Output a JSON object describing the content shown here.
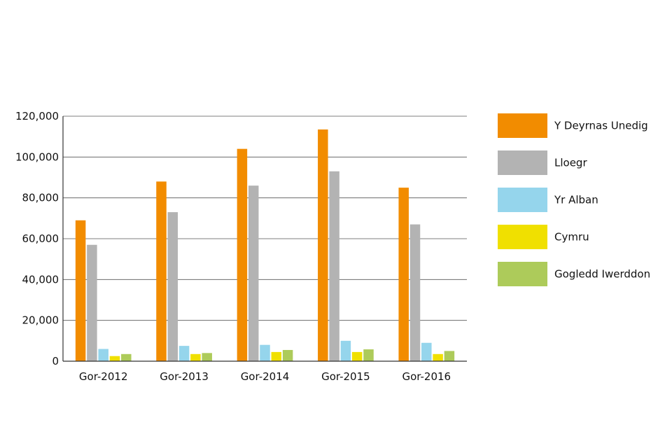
{
  "chart_data": {
    "type": "bar",
    "title": "",
    "xlabel": "",
    "ylabel": "",
    "categories": [
      "Gor-2012",
      "Gor-2013",
      "Gor-2014",
      "Gor-2015",
      "Gor-2016"
    ],
    "ylim": [
      0,
      120000
    ],
    "yticks": [
      0,
      20000,
      40000,
      60000,
      80000,
      100000,
      120000
    ],
    "ytick_labels": [
      "0",
      "20,000",
      "40,000",
      "60,000",
      "80,000",
      "100,000",
      "120,000"
    ],
    "grid": true,
    "legend_position": "right",
    "series": [
      {
        "name": "Y Deyrnas Unedig",
        "color": "#F28C00",
        "values": [
          69000,
          88000,
          104000,
          113500,
          85000
        ]
      },
      {
        "name": "Lloegr",
        "color": "#B3B3B3",
        "values": [
          57000,
          73000,
          86000,
          93000,
          67000
        ]
      },
      {
        "name": "Yr Alban",
        "color": "#95D5EC",
        "values": [
          6000,
          7500,
          8000,
          10000,
          9000
        ]
      },
      {
        "name": "Cymru",
        "color": "#F0E000",
        "values": [
          2500,
          3500,
          4500,
          4500,
          3500
        ]
      },
      {
        "name": "Gogledd Iwerddon",
        "color": "#ADCB5A",
        "values": [
          3500,
          4000,
          5500,
          5800,
          5000
        ]
      }
    ]
  }
}
